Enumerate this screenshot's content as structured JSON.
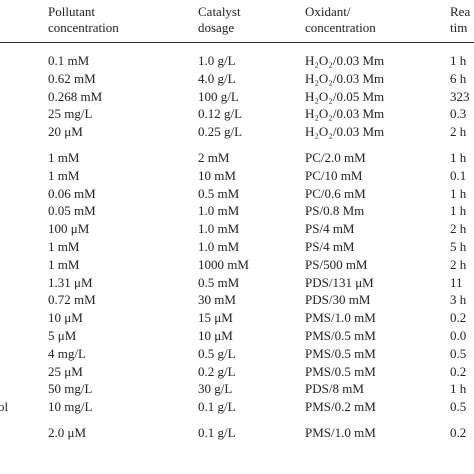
{
  "table": {
    "header": [
      [
        "Pollutant",
        "concentration"
      ],
      [
        "Catalyst",
        "dosage"
      ],
      [
        "Oxidant/",
        "concentration"
      ],
      [
        "Rea",
        "tim"
      ]
    ],
    "groups": [
      [
        {
          "cells": [
            "0.1 mM",
            "1.0 g/L",
            "H₂O₂/0.03 Mm",
            "1 h"
          ]
        },
        {
          "cells": [
            "0.62 mM",
            "4.0 g/L",
            "H₂O₂/0.03 Mm",
            "6 h"
          ]
        },
        {
          "cells": [
            "0.268 mM",
            "100 g/L",
            "H₂O₂/0.05 Mm",
            "323"
          ]
        },
        {
          "cells": [
            "25 mg/L",
            "0.12 g/L",
            "H₂O₂/0.03 Mm",
            "0.3"
          ]
        },
        {
          "cells": [
            "20 μM",
            "0.25 g/L",
            "H₂O₂/0.03 Mm",
            "2 h"
          ]
        }
      ],
      [
        {
          "cells": [
            "1 mM",
            "2 mM",
            "PC/2.0 mM",
            "1 h"
          ]
        },
        {
          "cells": [
            "1 mM",
            "10 mM",
            "PC/10 mM",
            "0.1"
          ]
        },
        {
          "cells": [
            "0.06 mM",
            "0.5 mM",
            "PC/0.6 mM",
            "1 h"
          ]
        },
        {
          "cells": [
            "0.05 mM",
            "1.0 mM",
            "PS/0.8 Mm",
            "1 h"
          ]
        },
        {
          "cells": [
            "100 μM",
            "1.0 mM",
            "PS/4 mM",
            "2 h"
          ]
        },
        {
          "cells": [
            "1 mM",
            "1.0 mM",
            "PS/4 mM",
            "5 h"
          ]
        },
        {
          "cells": [
            "1 mM",
            "1000 mM",
            "PS/500 mM",
            "2 h"
          ]
        },
        {
          "cells": [
            "1.31 μM",
            "0.5 mM",
            "PDS/131 μM",
            "11"
          ]
        },
        {
          "cells": [
            "0.72 mM",
            "30 mM",
            "PDS/30 mM",
            "3 h"
          ]
        },
        {
          "cells": [
            "10 μM",
            "15 μM",
            "PMS/1.0 mM",
            "0.2"
          ]
        },
        {
          "cells": [
            "5 μM",
            "10 μM",
            "PMS/0.5 mM",
            "0.0"
          ]
        },
        {
          "cells": [
            "4 mg/L",
            "0.5 g/L",
            "PMS/0.5 mM",
            "0.5"
          ]
        },
        {
          "cells": [
            "25 μM",
            "0.2 g/L",
            "PMS/0.5 mM",
            "0.2"
          ]
        },
        {
          "cells": [
            "50 mg/L",
            "30 g/L",
            "PDS/8 mM",
            "1 h"
          ]
        },
        {
          "label": "ol",
          "cells": [
            "10 mg/L",
            "0.1 g/L",
            "PMS/0.2 mM",
            "0.5"
          ]
        }
      ],
      [
        {
          "cells": [
            "2.0 μM",
            "0.1 g/L",
            "PMS/1.0 mM",
            "0.2"
          ]
        }
      ]
    ]
  }
}
